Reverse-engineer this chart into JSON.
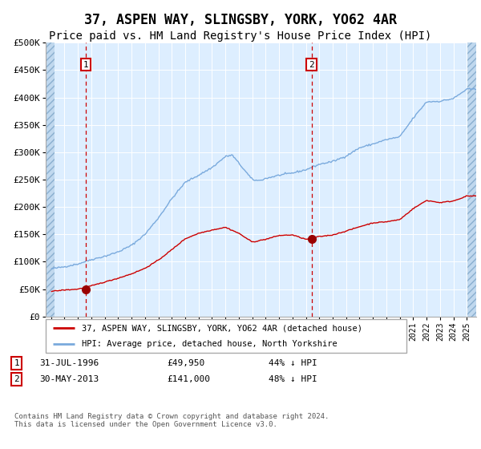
{
  "title": "37, ASPEN WAY, SLINGSBY, YORK, YO62 4AR",
  "subtitle": "Price paid vs. HM Land Registry's House Price Index (HPI)",
  "title_fontsize": 12,
  "subtitle_fontsize": 10,
  "bg_color": "#ddeeff",
  "hatch_color": "#b8cfe0",
  "grid_color": "#ffffff",
  "red_line_color": "#cc0000",
  "blue_line_color": "#7aaadd",
  "red_dot_color": "#990000",
  "yticks": [
    0,
    50000,
    100000,
    150000,
    200000,
    250000,
    300000,
    350000,
    400000,
    450000,
    500000
  ],
  "legend_line1": "37, ASPEN WAY, SLINGSBY, YORK, YO62 4AR (detached house)",
  "legend_line2": "HPI: Average price, detached house, North Yorkshire",
  "note1_label": "1",
  "note1_date": "31-JUL-1996",
  "note1_price": "£49,950",
  "note1_pct": "44% ↓ HPI",
  "note2_label": "2",
  "note2_date": "30-MAY-2013",
  "note2_price": "£141,000",
  "note2_pct": "48% ↓ HPI",
  "footnote": "Contains HM Land Registry data © Crown copyright and database right 2024.\nThis data is licensed under the Open Government Licence v3.0.",
  "hpi_key_years": [
    1994,
    1995,
    1996,
    1997,
    1998,
    1999,
    2000,
    2001,
    2002,
    2003,
    2004,
    2005,
    2006,
    2007,
    2007.5,
    2008,
    2009,
    2009.5,
    2010,
    2011,
    2012,
    2013,
    2014,
    2015,
    2016,
    2017,
    2018,
    2019,
    2020,
    2021,
    2022,
    2023,
    2024,
    2025
  ],
  "hpi_key_vals": [
    87000,
    91000,
    96000,
    104000,
    110000,
    118000,
    130000,
    150000,
    180000,
    215000,
    245000,
    258000,
    272000,
    292000,
    295000,
    280000,
    250000,
    248000,
    252000,
    258000,
    262000,
    268000,
    278000,
    283000,
    293000,
    308000,
    315000,
    323000,
    328000,
    362000,
    392000,
    393000,
    398000,
    415000
  ],
  "red_key_years": [
    1994,
    1995,
    1996,
    1997,
    1998,
    1999,
    2000,
    2001,
    2002,
    2003,
    2004,
    2005,
    2006,
    2007,
    2008,
    2009,
    2010,
    2011,
    2012,
    2013,
    2014,
    2015,
    2016,
    2017,
    2018,
    2019,
    2020,
    2021,
    2022,
    2023,
    2024,
    2025
  ],
  "red_key_vals": [
    46000,
    48500,
    50000,
    56000,
    63000,
    70000,
    78000,
    88000,
    103000,
    122000,
    142000,
    152000,
    158000,
    163000,
    152000,
    136000,
    141000,
    148000,
    149000,
    141000,
    146000,
    149000,
    156000,
    164000,
    171000,
    173000,
    177000,
    197000,
    212000,
    208000,
    211000,
    220000
  ]
}
